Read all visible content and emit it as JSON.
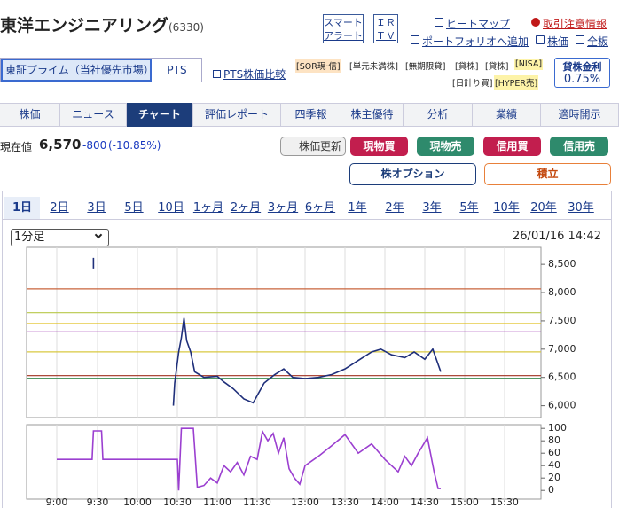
{
  "header": {
    "title": "東洋エンジニアリング",
    "code": "(6330)",
    "alert_box": [
      "スマート",
      "アラート"
    ],
    "ir_box": [
      "ＩＲ",
      "ＴＶ"
    ],
    "links": [
      "ヒートマップ",
      "取引注意情報",
      "ポートフォリオへ追加",
      "株価",
      "全板"
    ]
  },
  "market": {
    "tabs": [
      "東証プライム（当社優先市場）",
      "PTS"
    ],
    "compare": "PTS株価比較",
    "badges": [
      "[SOR現·信]",
      "[単元未満株]",
      "[無期限貸]",
      "[貸株]",
      "[貸株]",
      "[NISA]",
      "[日計り買]",
      "[HYPER売]"
    ],
    "rate_label": "貸株金利",
    "rate": "0.75%"
  },
  "nav": {
    "tabs": [
      "株価",
      "ニュース",
      "チャート",
      "評価レポート",
      "四季報",
      "株主優待",
      "分析",
      "業績",
      "適時開示"
    ]
  },
  "quote": {
    "label": "現在値",
    "price": "6,570",
    "change": "-800",
    "change_pct": "(-10.85%)"
  },
  "buttons": [
    "株価更新",
    "現物買",
    "現物売",
    "信用買",
    "信用売",
    "株オプション",
    "積立"
  ],
  "periods": [
    "1日",
    "2日",
    "3日",
    "5日",
    "10日",
    "1ヶ月",
    "2ヶ月",
    "3ヶ月",
    "6ヶ月",
    "1年",
    "2年",
    "3年",
    "5年",
    "10年",
    "20年",
    "30年"
  ],
  "interval": "1分足",
  "timestamp": "26/01/16 14:42",
  "chart_data": [
    {
      "type": "line",
      "color": "#1f2f7a",
      "x": [
        "9:27",
        "9:28",
        "10:27",
        "10:28",
        "10:31",
        "10:33",
        "10:35",
        "10:37",
        "10:40",
        "10:43",
        "10:50",
        "11:00",
        "11:05",
        "11:12",
        "11:20",
        "11:27",
        "11:43",
        "12:03",
        "12:20",
        "12:37",
        "13:00",
        "13:10",
        "13:20",
        "13:30",
        "13:40",
        "13:50",
        "13:57",
        "14:05",
        "14:15",
        "14:22",
        "14:30",
        "14:36",
        "14:42"
      ],
      "values": [
        8520,
        null,
        6000,
        6400,
        6950,
        7200,
        7550,
        7150,
        6950,
        6600,
        6500,
        6520,
        6420,
        6300,
        6120,
        6050,
        6400,
        6550,
        6650,
        6500,
        6480,
        6500,
        6550,
        6650,
        6800,
        6950,
        7000,
        6900,
        6850,
        6950,
        6820,
        7000,
        6600
      ],
      "xticks": [
        "9:00",
        "9:30",
        "10:00",
        "10:30",
        "11:00",
        "11:30",
        "13:00",
        "13:30",
        "14:00",
        "14:30",
        "15:00",
        "15:30"
      ],
      "ylim": [
        5790,
        8800
      ],
      "yticks": [
        {
          "value": 6000,
          "label": "6,000"
        },
        {
          "value": 6500,
          "label": "6,500"
        },
        {
          "value": 7000,
          "label": "7,000"
        },
        {
          "value": 7500,
          "label": "7,500"
        },
        {
          "value": 8000,
          "label": "8,000"
        },
        {
          "value": 8500,
          "label": "8,500"
        }
      ],
      "grid": "x",
      "reference_lines": [
        {
          "value": 8065,
          "color": "#c8643c"
        },
        {
          "value": 7645,
          "color": "#b8c84a"
        },
        {
          "value": 7452,
          "color": "#e0c020"
        },
        {
          "value": 7306,
          "color": "#9a30b0"
        },
        {
          "value": 6952,
          "color": "#d8c840"
        },
        {
          "value": 6532,
          "color": "#a03020"
        },
        {
          "value": 6484,
          "color": "#3a8a50"
        }
      ]
    },
    {
      "type": "line",
      "color": "#9b3fd0",
      "x": [
        "9:00",
        "9:26",
        "9:27",
        "9:33",
        "9:34",
        "10:30",
        "10:31",
        "10:33",
        "10:42",
        "10:45",
        "10:50",
        "10:55",
        "11:00",
        "11:05",
        "11:10",
        "11:15",
        "11:20",
        "11:25",
        "11:30",
        "11:40",
        "11:50",
        "12:00",
        "12:10",
        "12:20",
        "12:30",
        "12:40",
        "12:50",
        "13:00",
        "13:10",
        "13:20",
        "13:30",
        "13:40",
        "13:50",
        "14:00",
        "14:10",
        "14:15",
        "14:20",
        "14:25",
        "14:32",
        "14:37",
        "14:40",
        "14:42"
      ],
      "values": [
        50,
        50,
        96,
        96,
        50,
        50,
        0,
        100,
        100,
        5,
        8,
        20,
        12,
        40,
        30,
        45,
        25,
        55,
        50,
        95,
        80,
        92,
        60,
        85,
        35,
        20,
        10,
        40,
        55,
        72,
        90,
        60,
        75,
        50,
        30,
        55,
        40,
        60,
        85,
        30,
        3,
        3
      ],
      "xticks": [
        "9:00",
        "9:30",
        "10:00",
        "10:30",
        "11:00",
        "11:30",
        "13:00",
        "13:30",
        "14:00",
        "14:30",
        "15:00",
        "15:30"
      ],
      "ylim": [
        -14,
        106
      ],
      "yticks": [
        0,
        20,
        40,
        60,
        80,
        100
      ],
      "grid": "x"
    }
  ]
}
